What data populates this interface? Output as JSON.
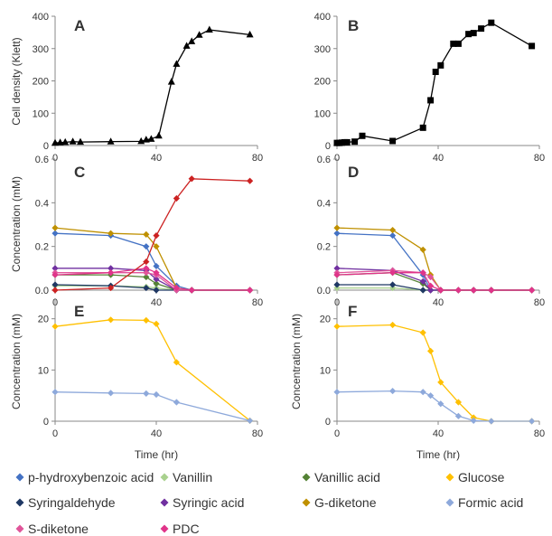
{
  "figure": {
    "legend": [
      {
        "name": "p-hydroxybenzoic acid",
        "color": "#4472C4"
      },
      {
        "name": "Vanillin",
        "color": "#A9D18E"
      },
      {
        "name": "Vanillic acid",
        "color": "#548235"
      },
      {
        "name": "Glucose",
        "color": "#FFC000"
      },
      {
        "name": "Syringaldehyde",
        "color": "#1F3864"
      },
      {
        "name": "Syringic acid",
        "color": "#7030A0"
      },
      {
        "name": "G-diketone",
        "color": "#BF9000"
      },
      {
        "name": "Formic acid",
        "color": "#8EA9DB"
      },
      {
        "name": "S-diketone",
        "color": "#E0559A"
      },
      {
        "name": "PDC",
        "color": "#E0348A"
      }
    ]
  },
  "chart_data": [
    {
      "panel": "A",
      "type": "line",
      "marker": "triangle",
      "xlim": [
        0,
        80
      ],
      "ylim": [
        0,
        400
      ],
      "xticks": [
        "0",
        "40",
        "80"
      ],
      "yticks": [
        "0",
        "100",
        "200",
        "300",
        "400"
      ],
      "ylabel": "Cell density (Klett)",
      "xlabel": "",
      "series": [
        {
          "color": "#000000",
          "x": [
            0,
            2,
            4,
            7,
            10,
            22,
            34,
            36,
            38,
            41,
            46,
            48,
            52,
            54,
            57,
            61,
            77
          ],
          "y": [
            8,
            9,
            10,
            12,
            11,
            12,
            13,
            18,
            20,
            30,
            197,
            252,
            308,
            322,
            342,
            358,
            343
          ]
        }
      ]
    },
    {
      "panel": "B",
      "type": "line",
      "marker": "square",
      "xlim": [
        0,
        80
      ],
      "ylim": [
        0,
        400
      ],
      "xticks": [
        "0",
        "40",
        "80"
      ],
      "yticks": [
        "0",
        "100",
        "200",
        "300",
        "400"
      ],
      "ylabel": "",
      "xlabel": "",
      "series": [
        {
          "color": "#000000",
          "x": [
            0,
            1,
            2,
            3,
            4,
            7,
            10,
            22,
            34,
            37,
            39,
            41,
            46,
            48,
            52,
            54,
            57,
            61,
            77
          ],
          "y": [
            8,
            8,
            9,
            10,
            10,
            12,
            30,
            14,
            55,
            140,
            228,
            248,
            315,
            315,
            345,
            348,
            362,
            380,
            308
          ]
        }
      ]
    },
    {
      "panel": "C",
      "type": "line",
      "marker": "diamond",
      "xlim": [
        0,
        80
      ],
      "ylim": [
        0,
        0.6
      ],
      "xticks": [
        "0",
        "40",
        "80"
      ],
      "yticks": [
        "0.0",
        "0.2",
        "0.4",
        "0.6"
      ],
      "ylabel": "Concentration (mM)",
      "xlabel": "",
      "series": [
        {
          "name": "p-hydroxybenzoic acid",
          "color": "#4472C4",
          "x": [
            0,
            22,
            36,
            40,
            48,
            54,
            77
          ],
          "y": [
            0.26,
            0.25,
            0.2,
            0.11,
            0.02,
            0,
            0
          ]
        },
        {
          "name": "Vanillin",
          "color": "#A9D18E",
          "x": [
            0,
            22,
            36,
            40,
            48,
            54,
            77
          ],
          "y": [
            0.02,
            0.02,
            0.015,
            0.01,
            0,
            0,
            0
          ]
        },
        {
          "name": "Vanillic acid",
          "color": "#548235",
          "x": [
            0,
            22,
            36,
            40,
            48,
            54,
            77
          ],
          "y": [
            0.07,
            0.07,
            0.06,
            0.03,
            0,
            0,
            0
          ]
        },
        {
          "name": "Syringaldehyde",
          "color": "#1F3864",
          "x": [
            0,
            22,
            36,
            40,
            48,
            54,
            77
          ],
          "y": [
            0.025,
            0.02,
            0.01,
            0,
            0,
            0,
            0
          ]
        },
        {
          "name": "Syringic acid",
          "color": "#7030A0",
          "x": [
            0,
            22,
            36,
            40,
            48,
            54,
            77
          ],
          "y": [
            0.1,
            0.1,
            0.09,
            0.05,
            0,
            0,
            0
          ]
        },
        {
          "name": "G-diketone",
          "color": "#BF9000",
          "x": [
            0,
            22,
            36,
            40,
            48,
            54,
            77
          ],
          "y": [
            0.285,
            0.26,
            0.255,
            0.2,
            0.01,
            0,
            0
          ]
        },
        {
          "name": "S-diketone",
          "color": "#E0559A",
          "x": [
            0,
            22,
            36,
            40,
            48,
            54,
            77
          ],
          "y": [
            0.08,
            0.08,
            0.08,
            0.07,
            0,
            0,
            0
          ]
        },
        {
          "name": "PDC",
          "color": "#E0348A",
          "x": [
            0,
            22,
            36,
            40,
            48,
            54,
            77
          ],
          "y": [
            0.07,
            0.08,
            0.1,
            0.08,
            0.01,
            0,
            0
          ]
        },
        {
          "name": "",
          "color": "#CC2222",
          "x": [
            0,
            22,
            36,
            40,
            48,
            54,
            77
          ],
          "y": [
            0,
            0.01,
            0.13,
            0.25,
            0.42,
            0.51,
            0.5
          ]
        }
      ]
    },
    {
      "panel": "D",
      "type": "line",
      "marker": "diamond",
      "xlim": [
        0,
        80
      ],
      "ylim": [
        0,
        0.6
      ],
      "xticks": [
        "0",
        "40",
        "80"
      ],
      "yticks": [
        "0.0",
        "0.2",
        "0.4",
        "0.6"
      ],
      "ylabel": "",
      "xlabel": "",
      "series": [
        {
          "name": "p-hydroxybenzoic acid",
          "color": "#4472C4",
          "x": [
            0,
            22,
            34,
            37,
            41,
            48,
            54,
            61,
            77
          ],
          "y": [
            0.26,
            0.25,
            0.07,
            0,
            0,
            0,
            0,
            0,
            0
          ]
        },
        {
          "name": "Vanillin",
          "color": "#A9D18E",
          "x": [
            0,
            22,
            34,
            37,
            41,
            48,
            54,
            61,
            77
          ],
          "y": [
            0.01,
            0.01,
            0,
            0,
            0,
            0,
            0,
            0,
            0
          ]
        },
        {
          "name": "Vanillic acid",
          "color": "#548235",
          "x": [
            0,
            22,
            34,
            37,
            41,
            48,
            54,
            61,
            77
          ],
          "y": [
            0.07,
            0.08,
            0.03,
            0,
            0,
            0,
            0,
            0,
            0
          ]
        },
        {
          "name": "Syringaldehyde",
          "color": "#1F3864",
          "x": [
            0,
            22,
            34,
            37,
            41,
            48,
            54,
            61,
            77
          ],
          "y": [
            0.025,
            0.025,
            0,
            0,
            0,
            0,
            0,
            0,
            0
          ]
        },
        {
          "name": "Syringic acid",
          "color": "#7030A0",
          "x": [
            0,
            22,
            34,
            37,
            41,
            48,
            54,
            61,
            77
          ],
          "y": [
            0.1,
            0.09,
            0.04,
            0,
            0,
            0,
            0,
            0,
            0
          ]
        },
        {
          "name": "G-diketone",
          "color": "#BF9000",
          "x": [
            0,
            22,
            34,
            37,
            41,
            48,
            54,
            61,
            77
          ],
          "y": [
            0.285,
            0.275,
            0.185,
            0.07,
            0,
            0,
            0,
            0,
            0
          ]
        },
        {
          "name": "S-diketone",
          "color": "#E0559A",
          "x": [
            0,
            22,
            34,
            37,
            41,
            48,
            54,
            61,
            77
          ],
          "y": [
            0.08,
            0.09,
            0.08,
            0.06,
            0,
            0,
            0,
            0,
            0
          ]
        },
        {
          "name": "PDC",
          "color": "#E0348A",
          "x": [
            0,
            22,
            34,
            37,
            41,
            48,
            54,
            61,
            77
          ],
          "y": [
            0.07,
            0.08,
            0.08,
            0.02,
            0,
            0,
            0,
            0,
            0
          ]
        }
      ]
    },
    {
      "panel": "E",
      "type": "line",
      "marker": "diamond",
      "xlim": [
        0,
        80
      ],
      "ylim": [
        0,
        24
      ],
      "xticks": [
        "0",
        "40",
        "80"
      ],
      "yticks": [
        "0",
        "10",
        "20"
      ],
      "ylabel": "Concentration (mM)",
      "xlabel": "Time (hr)",
      "series": [
        {
          "name": "Glucose",
          "color": "#FFC000",
          "x": [
            0,
            22,
            36,
            40,
            48,
            77
          ],
          "y": [
            18.5,
            19.8,
            19.7,
            19.0,
            11.5,
            0.1
          ]
        },
        {
          "name": "Formic acid",
          "color": "#8EA9DB",
          "x": [
            0,
            22,
            36,
            40,
            48,
            77
          ],
          "y": [
            5.7,
            5.5,
            5.4,
            5.2,
            3.7,
            0.1
          ]
        }
      ]
    },
    {
      "panel": "F",
      "type": "line",
      "marker": "diamond",
      "xlim": [
        0,
        80
      ],
      "ylim": [
        0,
        24
      ],
      "xticks": [
        "0",
        "40",
        "80"
      ],
      "yticks": [
        "0",
        "10",
        "20"
      ],
      "ylabel": "Concentration (mM)",
      "xlabel": "Time (hr)",
      "series": [
        {
          "name": "Glucose",
          "color": "#FFC000",
          "x": [
            0,
            22,
            34,
            37,
            41,
            48,
            54,
            61,
            77
          ],
          "y": [
            18.5,
            18.8,
            17.3,
            13.7,
            7.6,
            3.7,
            0.7,
            0,
            0
          ]
        },
        {
          "name": "Formic acid",
          "color": "#8EA9DB",
          "x": [
            0,
            22,
            34,
            37,
            41,
            48,
            54,
            61,
            77
          ],
          "y": [
            5.7,
            5.9,
            5.7,
            5.0,
            3.4,
            1.0,
            0.1,
            0,
            0
          ]
        }
      ]
    }
  ]
}
